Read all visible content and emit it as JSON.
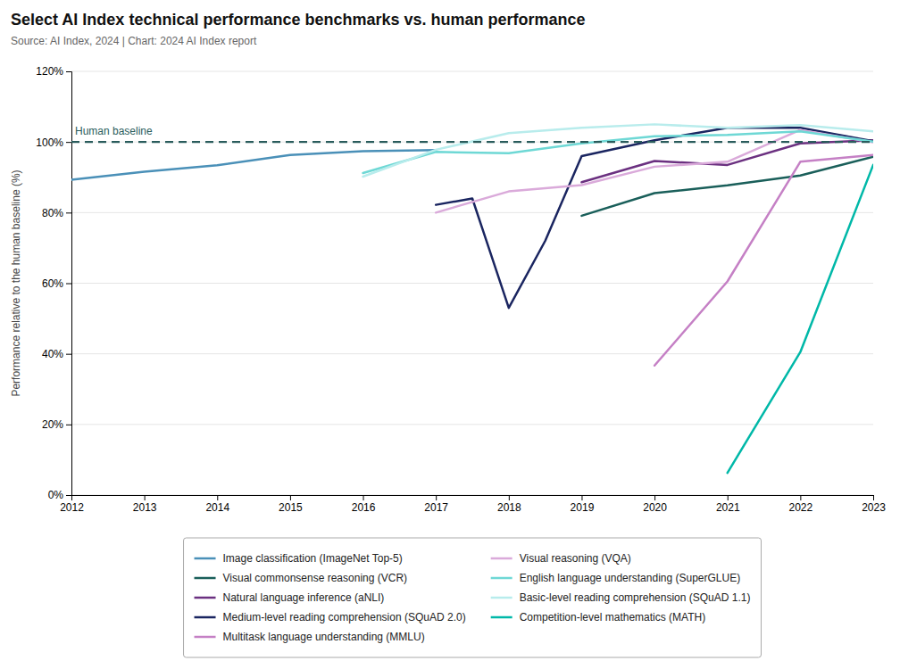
{
  "chart_data": {
    "type": "line",
    "title": "Select AI Index technical performance benchmarks vs. human performance",
    "subtitle": "Source: AI Index, 2024 | Chart: 2024 AI Index report",
    "y_label": "Performance relative to the human baseline (%)",
    "xlim": [
      2012,
      2023
    ],
    "ylim": [
      0,
      1.2
    ],
    "xticks": [
      2012,
      2013,
      2014,
      2015,
      2016,
      2017,
      2018,
      2019,
      2020,
      2021,
      2022,
      2023
    ],
    "yticks": [
      {
        "value": 0,
        "label": "0%"
      },
      {
        "value": 0.2,
        "label": "20%"
      },
      {
        "value": 0.4,
        "label": "40%"
      },
      {
        "value": 0.6,
        "label": "60%"
      },
      {
        "value": 0.8,
        "label": "80%"
      },
      {
        "value": 1.0,
        "label": "100%"
      },
      {
        "value": 1.2,
        "label": "120%"
      }
    ],
    "grid": true,
    "legend": "bottom",
    "annotations": [
      {
        "text": "Human baseline",
        "y": 1.0,
        "line_style": "dashed",
        "color": "#2a5c5c"
      }
    ],
    "series": [
      {
        "name": "Image classification (ImageNet Top-5)",
        "color": "#4a90b8",
        "x": [
          2012,
          2013,
          2014,
          2015,
          2016,
          2017
        ],
        "values": [
          0.893,
          0.916,
          0.934,
          0.963,
          0.974,
          0.977
        ]
      },
      {
        "name": "Visual commonsense reasoning (VCR)",
        "color": "#1a5f5a",
        "x": [
          2019,
          2020,
          2021,
          2022,
          2023
        ],
        "values": [
          0.791,
          0.855,
          0.877,
          0.905,
          0.958
        ]
      },
      {
        "name": "Natural language inference (aNLI)",
        "color": "#6b3080",
        "x": [
          2019,
          2020,
          2021,
          2022,
          2023
        ],
        "values": [
          0.886,
          0.946,
          0.935,
          0.996,
          1.005
        ]
      },
      {
        "name": "Medium-level reading comprehension (SQuAD 2.0)",
        "color": "#1a2560",
        "x": [
          2017,
          2017.5,
          2018,
          2018.5,
          2019,
          2020,
          2021,
          2022,
          2023
        ],
        "values": [
          0.822,
          0.84,
          0.53,
          0.72,
          0.96,
          1.005,
          1.04,
          1.04,
          1.002
        ]
      },
      {
        "name": "Multitask language understanding (MMLU)",
        "color": "#c580c5",
        "x": [
          2020,
          2021,
          2022,
          2023
        ],
        "values": [
          0.367,
          0.605,
          0.944,
          0.963
        ]
      },
      {
        "name": "Visual reasoning (VQA)",
        "color": "#daaada",
        "x": [
          2017,
          2018,
          2019,
          2020,
          2021,
          2022,
          2023
        ],
        "values": [
          0.8,
          0.86,
          0.878,
          0.93,
          0.944,
          1.034,
          0.999
        ]
      },
      {
        "name": "English language understanding (SuperGLUE)",
        "color": "#6ed8d5",
        "x": [
          2016,
          2017,
          2018,
          2019,
          2020,
          2021,
          2022,
          2023
        ],
        "values": [
          0.912,
          0.972,
          0.968,
          0.996,
          1.016,
          1.02,
          1.03,
          1.001
        ]
      },
      {
        "name": "Basic-level reading comprehension (SQuAD 1.1)",
        "color": "#b8ecec",
        "x": [
          2016,
          2017,
          2018,
          2019,
          2020,
          2021,
          2022,
          2023
        ],
        "values": [
          0.902,
          0.978,
          1.025,
          1.04,
          1.05,
          1.04,
          1.048,
          1.03
        ]
      },
      {
        "name": "Competition-level mathematics (MATH)",
        "color": "#00b8a8",
        "x": [
          2021,
          2022,
          2023
        ],
        "values": [
          0.063,
          0.405,
          0.935
        ]
      }
    ]
  }
}
